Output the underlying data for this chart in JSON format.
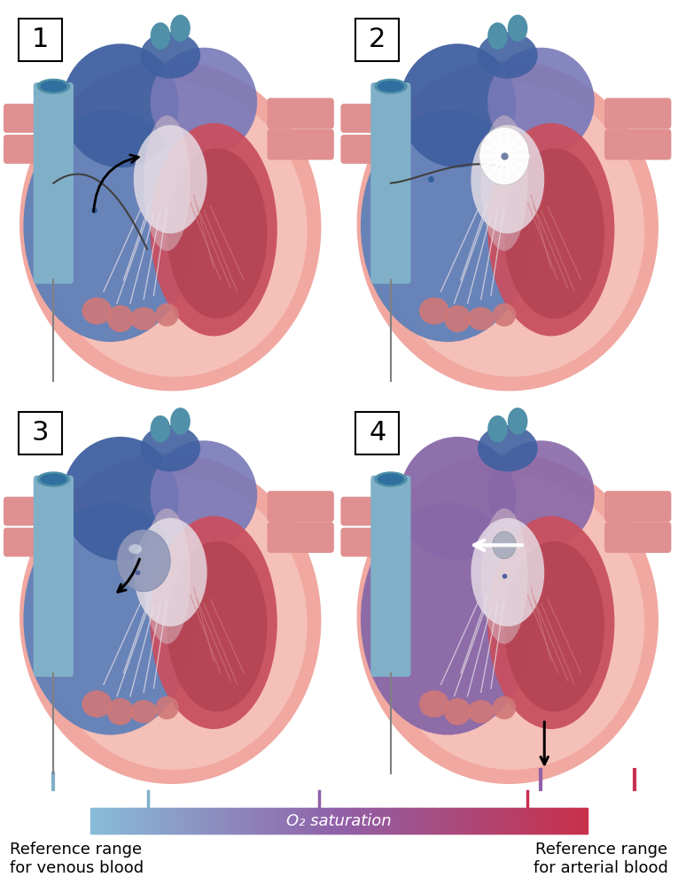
{
  "panel_labels": [
    "1",
    "2",
    "3",
    "4"
  ],
  "gradient_label": "O₂ saturation",
  "left_label_line1": "Reference range",
  "left_label_line2": "for venous blood",
  "right_label_line1": "Reference range",
  "right_label_line2": "for arterial blood",
  "gradient_left_color": "#88bcd8",
  "gradient_right_color": "#c8304a",
  "gradient_mid_color": "#9060a8",
  "background_color": "#ffffff",
  "panel_label_fontsize": 22,
  "ref_label_fontsize": 13,
  "gradient_label_fontsize": 13,
  "body_bg": "#f0a8a0",
  "body_bg_inner": "#f5c0b8",
  "blue_atrium": "#6080b8",
  "blue_atrium_dark": "#4060a0",
  "blue_ventricle": "#7090c8",
  "sv_blue": "#80aac8",
  "blue_purple": "#7878b8",
  "purple_mix": "#8868a8",
  "red_ventricle": "#c85060",
  "red_ventricle_inner": "#b04050",
  "red_vein": "#d07878",
  "salmon": "#e09090",
  "vessel_blue_lt": "#80b0c8",
  "vessel_blue_dk": "#5090a8",
  "chordae_color": "#c06070",
  "valve_white": "#e8e0e8",
  "sep_wall": "#d8c0c8",
  "wire_color": "#404040",
  "needle_color": "#808080"
}
